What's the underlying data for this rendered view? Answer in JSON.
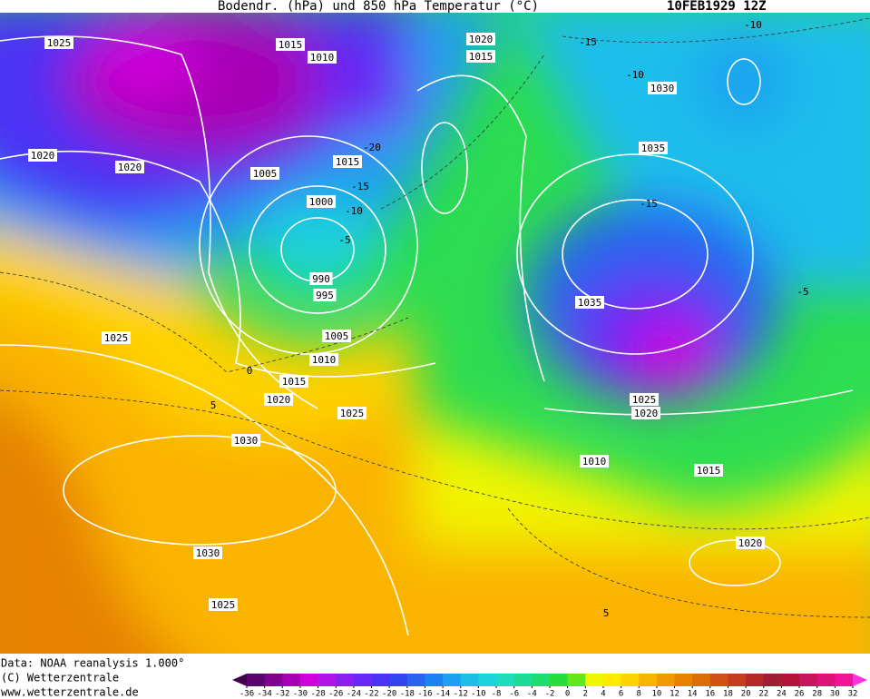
{
  "header": {
    "title": "Bodendr. (hPa) und 850 hPa Temperatur (°C)",
    "date": "10FEB1929 12Z"
  },
  "credits": [
    "Data: NOAA reanalysis 1.000°",
    "(C) Wetterzentrale",
    "www.wetterzentrale.de"
  ],
  "map": {
    "isobar_labels": [
      1025,
      1015,
      1020,
      1010,
      1015,
      1030,
      1020,
      1020,
      1015,
      1005,
      1035,
      1000,
      990,
      995,
      1035,
      1025,
      1005,
      1010,
      1015,
      1020,
      1025,
      1025,
      1020,
      1030,
      1010,
      1015,
      1020,
      1030,
      1025
    ],
    "isotherm_labels": [
      -15,
      -10,
      -10,
      -20,
      -15,
      -10,
      -5,
      -15,
      -5,
      0,
      5,
      5
    ]
  },
  "colorbar": {
    "ticks": [
      -36,
      -34,
      -32,
      -30,
      -28,
      -26,
      -24,
      -22,
      -20,
      -18,
      -16,
      -14,
      -12,
      -10,
      -8,
      -6,
      -4,
      -2,
      0,
      2,
      4,
      6,
      8,
      10,
      12,
      14,
      16,
      18,
      20,
      22,
      24,
      26,
      28,
      30,
      32
    ],
    "colors": [
      "#3d004d",
      "#5c0070",
      "#82008e",
      "#a800b4",
      "#d000dc",
      "#b014e6",
      "#8c1ef0",
      "#6a28f5",
      "#4b32f5",
      "#3246f0",
      "#2864f0",
      "#1e82f0",
      "#1ea0f0",
      "#1ebeeb",
      "#1ed2dc",
      "#1edcbe",
      "#1edc96",
      "#1edc6e",
      "#28dc3c",
      "#64e61e",
      "#f0f500",
      "#ffeb00",
      "#ffd200",
      "#fab400",
      "#f09b00",
      "#e68200",
      "#dc6e0a",
      "#d25014",
      "#c83c1e",
      "#b42828",
      "#a01e32",
      "#b4143c",
      "#c8145a",
      "#dc1478",
      "#f01496",
      "#ff32dc"
    ]
  }
}
